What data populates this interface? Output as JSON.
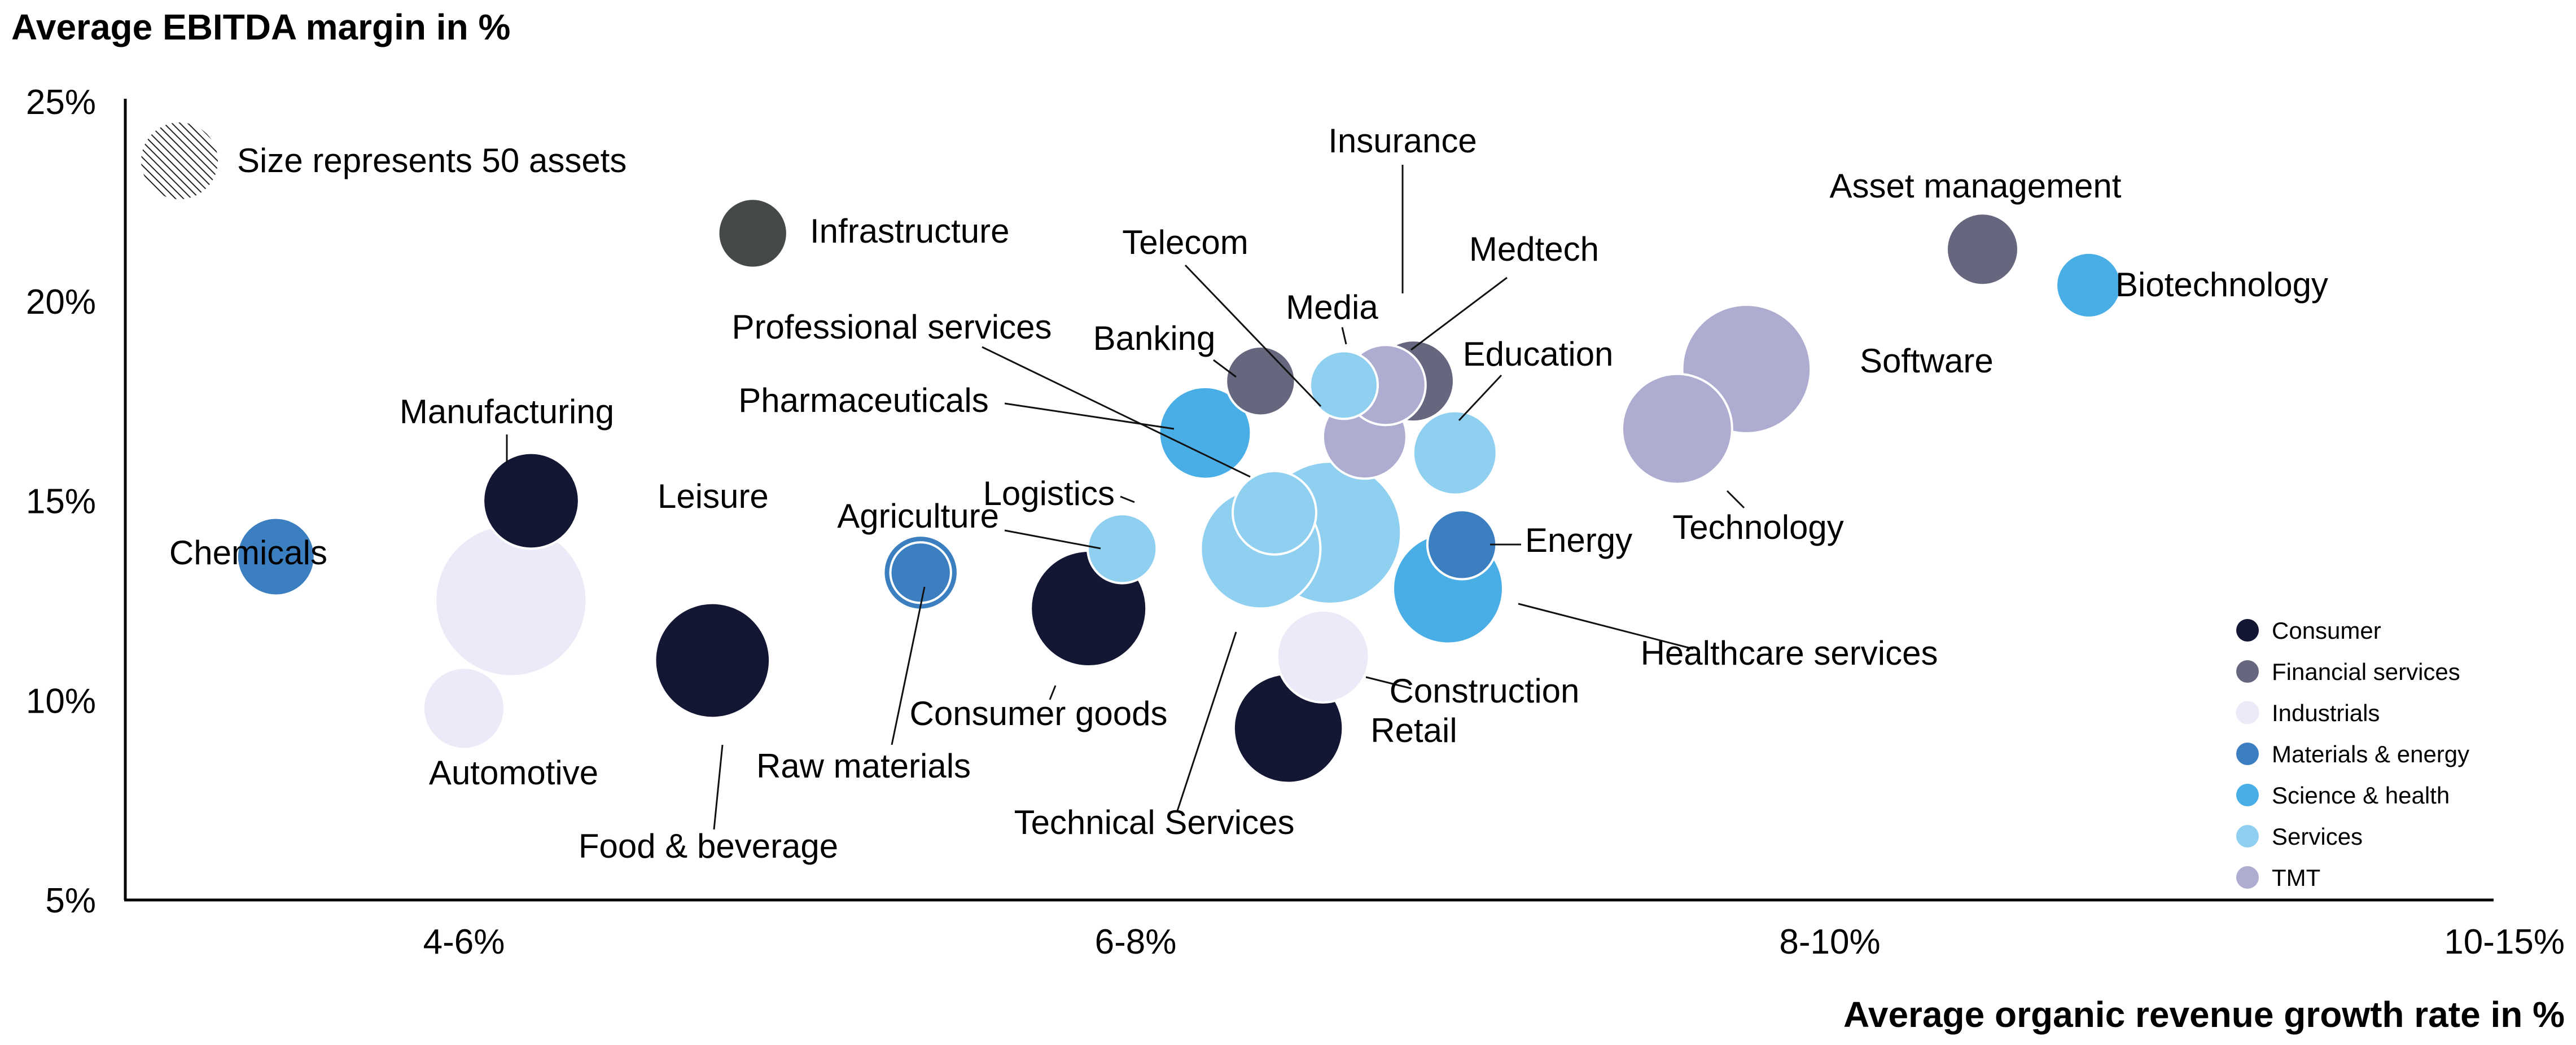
{
  "colors": {
    "Consumer": "#141733",
    "Financial services": "#66667e",
    "Industrials": "#ebeaf8",
    "Materials & energy": "#3c7fc0",
    "Science & health": "#4aaee6",
    "Services": "#8fd0f0",
    "TMT": "#aeacd0",
    "Infrastructure": "#454a46",
    "axis": "#000000",
    "leader": "#111111"
  },
  "size_note": "Size represents 50 assets",
  "chart_data": {
    "type": "bubble",
    "title": "",
    "ylabel": "Average EBITDA margin in %",
    "xlabel": "Average organic revenue growth rate in %",
    "x_categories": [
      "4-6%",
      "6-8%",
      "8-10%",
      "10-15%"
    ],
    "x_category_positions": [
      1,
      2,
      3,
      4
    ],
    "xlim": [
      0.43,
      4.0
    ],
    "ylim": [
      5,
      25
    ],
    "yticks": [
      "25%",
      "20%",
      "15%",
      "10%",
      "5%"
    ],
    "ytick_values": [
      25,
      20,
      15,
      10,
      5
    ],
    "grid": false,
    "legend_position": "bottom-right",
    "legend": [
      "Consumer",
      "Financial services",
      "Industrials",
      "Materials & energy",
      "Science & health",
      "Services",
      "TMT"
    ],
    "series": [
      {
        "label": "Industrials (unlabeled)",
        "group": "Industrials",
        "x": 1.07,
        "y": 12.5,
        "size": 125,
        "show_label": false
      },
      {
        "label": "Food & beverage",
        "group": "Consumer",
        "x": 1.37,
        "y": 11.0,
        "size": 72
      },
      {
        "label": "Leisure",
        "group": "Consumer",
        "x": 1.1,
        "y": 15.0,
        "size": 50
      },
      {
        "label": "Manufacturing",
        "group": "Industrials",
        "x": 1.02,
        "y": 15.3,
        "size": 1,
        "show_bubble": false
      },
      {
        "label": "Automotive",
        "group": "Industrials",
        "x": 1.0,
        "y": 9.8,
        "size": 36
      },
      {
        "label": "Chemicals",
        "group": "Materials & energy",
        "x": 0.72,
        "y": 13.6,
        "size": 33
      },
      {
        "label": "Raw materials",
        "group": "Materials & energy",
        "x": 1.68,
        "y": 13.2,
        "size": 30,
        "show_bubble": true
      },
      {
        "label": "Infrastructure",
        "group": "Infrastructure",
        "x": 1.43,
        "y": 21.7,
        "size": 26
      },
      {
        "label": "Consumer goods",
        "group": "Consumer",
        "x": 1.93,
        "y": 12.3,
        "size": 73
      },
      {
        "label": "Logistics",
        "group": "Services",
        "x": 1.98,
        "y": 13.8,
        "size": 26
      },
      {
        "label": "Agriculture",
        "group": "Materials & energy",
        "x": 1.68,
        "y": 13.2,
        "size": 20
      },
      {
        "label": "Services (unlabeled)",
        "group": "Services",
        "x": 2.28,
        "y": 14.2,
        "size": 110,
        "show_label": false
      },
      {
        "label": "Technical Services",
        "group": "Services",
        "x": 2.18,
        "y": 13.8,
        "size": 78
      },
      {
        "label": "Professional services",
        "group": "Services",
        "x": 2.2,
        "y": 14.7,
        "size": 38
      },
      {
        "label": "Pharmaceuticals",
        "group": "Science & health",
        "x": 2.1,
        "y": 16.7,
        "size": 46
      },
      {
        "label": "Banking",
        "group": "Financial services",
        "x": 2.18,
        "y": 18.0,
        "size": 26
      },
      {
        "label": "Telecom",
        "group": "Services",
        "x": 2.3,
        "y": 17.9,
        "size": 25
      },
      {
        "label": "Media",
        "group": "TMT",
        "x": 2.36,
        "y": 17.9,
        "size": 35
      },
      {
        "label": "Insurance",
        "group": "Financial services",
        "x": 2.4,
        "y": 18.0,
        "size": 36
      },
      {
        "label": "Medtech",
        "group": "TMT",
        "x": 2.33,
        "y": 16.6,
        "size": 38
      },
      {
        "label": "Education",
        "group": "Services",
        "x": 2.46,
        "y": 16.2,
        "size": 38
      },
      {
        "label": "Energy",
        "group": "Materials & energy",
        "x": 2.47,
        "y": 13.9,
        "size": 26
      },
      {
        "label": "Healthcare services",
        "group": "Science & health",
        "x": 2.45,
        "y": 12.8,
        "size": 66
      },
      {
        "label": "Construction",
        "group": "Industrials",
        "x": 2.27,
        "y": 11.1,
        "size": 46
      },
      {
        "label": "Retail",
        "group": "Consumer",
        "x": 2.22,
        "y": 9.3,
        "size": 65
      },
      {
        "label": "Software",
        "group": "TMT",
        "x": 2.88,
        "y": 18.3,
        "size": 90
      },
      {
        "label": "Technology",
        "group": "TMT",
        "x": 2.78,
        "y": 16.8,
        "size": 66
      },
      {
        "label": "Asset management",
        "group": "Financial services",
        "x": 3.23,
        "y": 21.3,
        "size": 28
      },
      {
        "label": "Biotechnology",
        "group": "Science & health",
        "x": 3.39,
        "y": 20.4,
        "size": 23
      }
    ]
  }
}
